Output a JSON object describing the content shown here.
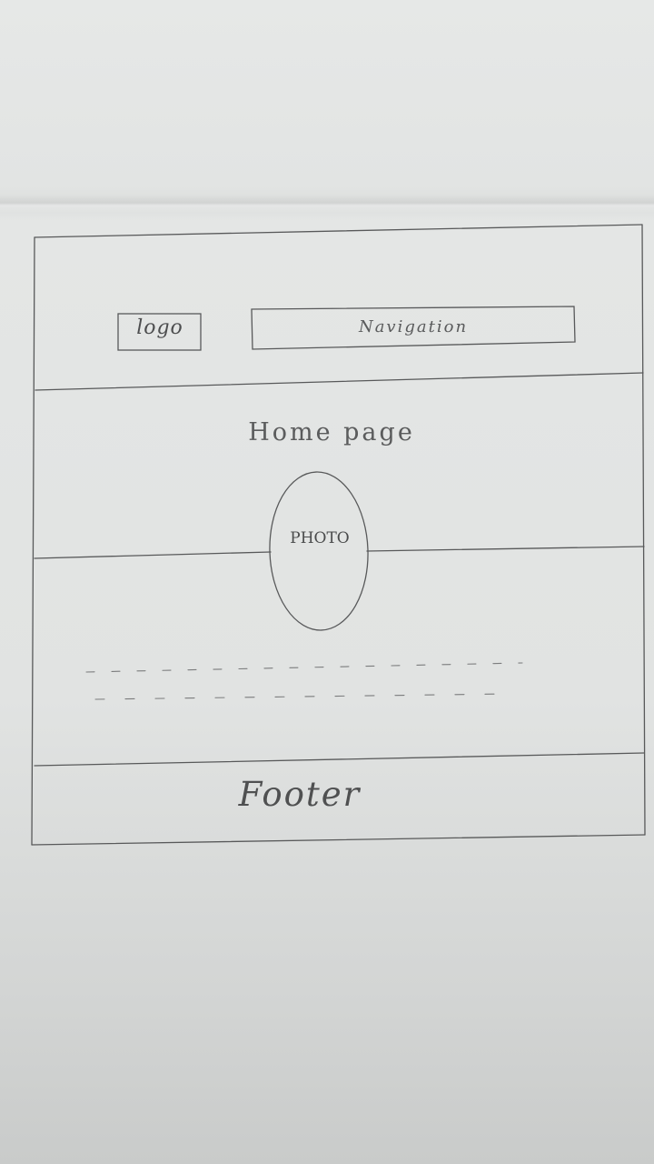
{
  "header": {
    "logo_label": "logo",
    "navigation_label": "Navigation"
  },
  "main": {
    "title": "Home page",
    "photo_label": "PHOTO"
  },
  "footer": {
    "label": "Footer"
  }
}
